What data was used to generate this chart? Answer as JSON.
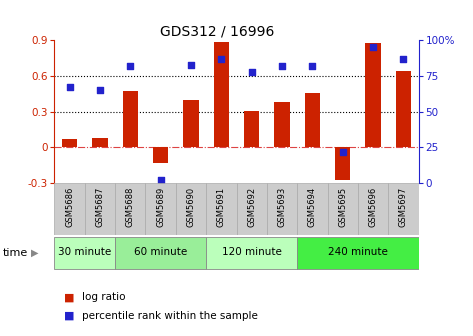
{
  "title": "GDS312 / 16996",
  "samples": [
    "GSM5686",
    "GSM5687",
    "GSM5688",
    "GSM5689",
    "GSM5690",
    "GSM5691",
    "GSM5692",
    "GSM5693",
    "GSM5694",
    "GSM5695",
    "GSM5696",
    "GSM5697"
  ],
  "log_ratio": [
    0.07,
    0.08,
    0.47,
    -0.13,
    0.4,
    0.89,
    0.31,
    0.38,
    0.46,
    -0.27,
    0.88,
    0.64
  ],
  "percentile_rank": [
    67,
    65,
    82,
    2,
    83,
    87,
    78,
    82,
    82,
    22,
    95,
    87
  ],
  "bar_color": "#cc2200",
  "dot_color": "#2222cc",
  "ylim_left": [
    -0.3,
    0.9
  ],
  "ylim_right": [
    0,
    100
  ],
  "yticks_left": [
    -0.3,
    0.0,
    0.3,
    0.6,
    0.9
  ],
  "ytick_labels_left": [
    "-0.3",
    "0",
    "0.3",
    "0.6",
    "0.9"
  ],
  "yticks_right": [
    0,
    25,
    50,
    75,
    100
  ],
  "ytick_labels_right": [
    "0",
    "25",
    "50",
    "75",
    "100%"
  ],
  "hlines": [
    0.3,
    0.6
  ],
  "groups": [
    {
      "label": "30 minute",
      "start": 0,
      "end": 1,
      "color": "#bbffbb"
    },
    {
      "label": "60 minute",
      "start": 2,
      "end": 4,
      "color": "#99ee99"
    },
    {
      "label": "120 minute",
      "start": 5,
      "end": 7,
      "color": "#bbffbb"
    },
    {
      "label": "240 minute",
      "start": 8,
      "end": 11,
      "color": "#44ee44"
    }
  ],
  "time_label": "time",
  "legend_bar_label": "log ratio",
  "legend_dot_label": "percentile rank within the sample",
  "background_color": "#ffffff",
  "zero_line_color": "#dd4444",
  "xtick_bg": "#cccccc",
  "grid_color": "#000000"
}
